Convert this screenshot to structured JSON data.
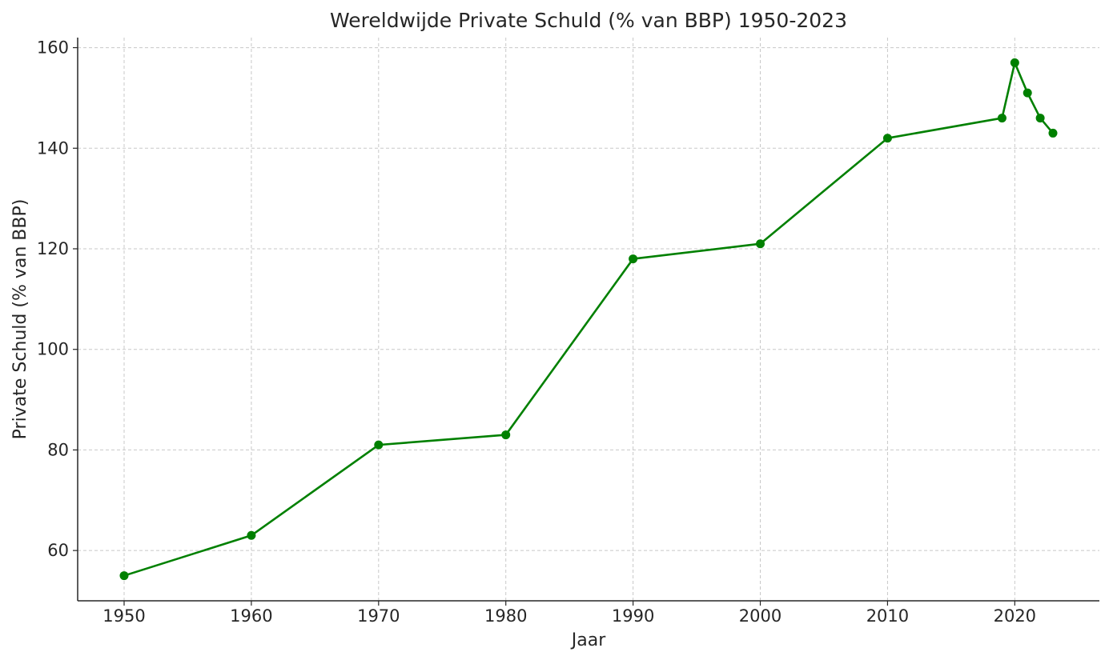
{
  "chart_data": {
    "type": "line",
    "title": "Wereldwijde Private Schuld (% van BBP) 1950-2023",
    "xlabel": "Jaar",
    "ylabel": "Private Schuld (% van BBP)",
    "xlim": [
      1946.35,
      2026.65
    ],
    "ylim": [
      50.0,
      162.0
    ],
    "xticks": [
      1950,
      1960,
      1970,
      1980,
      1990,
      2000,
      2010,
      2020
    ],
    "yticks": [
      60,
      80,
      100,
      120,
      140,
      160
    ],
    "grid": true,
    "legend": "none",
    "series": [
      {
        "color": "#008000",
        "marker": "circle",
        "x": [
          1950,
          1960,
          1970,
          1980,
          1990,
          2000,
          2010,
          2019,
          2020,
          2021,
          2022,
          2023
        ],
        "y": [
          55,
          63,
          81,
          83,
          118,
          121,
          142,
          146,
          157,
          151,
          146,
          143
        ]
      }
    ]
  }
}
